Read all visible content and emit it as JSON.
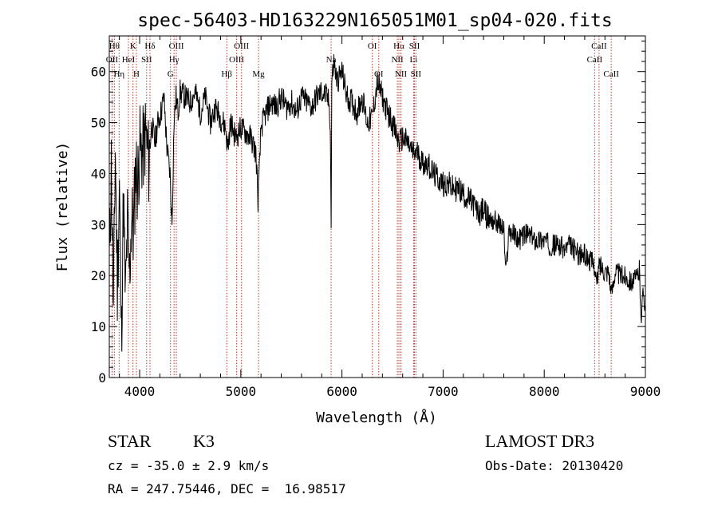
{
  "chart_data": {
    "type": "line",
    "title": "spec-56403-HD163229N165051M01_sp04-020.fits",
    "xlabel": "Wavelength (Å)",
    "ylabel": "Flux (relative)",
    "xlim": [
      3700,
      9000
    ],
    "ylim": [
      0,
      67
    ],
    "xticks": [
      4000,
      5000,
      6000,
      7000,
      8000,
      9000
    ],
    "yticks": [
      0,
      10,
      20,
      30,
      40,
      50,
      60
    ],
    "line_color": "#000000",
    "marker_color": "#c0392b",
    "series": [
      {
        "x": [
          3700,
          3720,
          3740,
          3760,
          3780,
          3800,
          3820,
          3840,
          3860,
          3880,
          3900,
          3920,
          3940,
          3960,
          3980,
          4000,
          4030,
          4060,
          4090,
          4120,
          4150,
          4180,
          4210,
          4240,
          4270,
          4300,
          4320,
          4340,
          4360,
          4380,
          4400,
          4450,
          4500,
          4550,
          4600,
          4650,
          4700,
          4750,
          4800,
          4850,
          4870,
          4900,
          4950,
          5000,
          5050,
          5100,
          5150,
          5170,
          5183,
          5200,
          5250,
          5300,
          5350,
          5400,
          5450,
          5500,
          5550,
          5600,
          5650,
          5700,
          5750,
          5800,
          5850,
          5870,
          5885,
          5893,
          5900,
          5920,
          5950,
          6000,
          6050,
          6100,
          6150,
          6200,
          6250,
          6300,
          6350,
          6400,
          6450,
          6500,
          6530,
          6563,
          6600,
          6650,
          6700,
          6750,
          6800,
          6850,
          6900,
          6950,
          7000,
          7050,
          7100,
          7150,
          7200,
          7250,
          7300,
          7350,
          7400,
          7450,
          7500,
          7550,
          7600,
          7620,
          7650,
          7700,
          7750,
          7800,
          7850,
          7900,
          7950,
          8000,
          8050,
          8100,
          8150,
          8200,
          8250,
          8300,
          8350,
          8400,
          8450,
          8498,
          8520,
          8542,
          8560,
          8600,
          8640,
          8662,
          8700,
          8750,
          8800,
          8850,
          8900,
          8940,
          8960,
          8980,
          9000
        ],
        "values": [
          22,
          42,
          12,
          45,
          18,
          38,
          8,
          35,
          15,
          30,
          20,
          32,
          28,
          42,
          38,
          45,
          44,
          48,
          42,
          50,
          46,
          50,
          52,
          55,
          45,
          40,
          30,
          50,
          55,
          52,
          56,
          55,
          54,
          56,
          52,
          55,
          50,
          53,
          51,
          49,
          45,
          50,
          47,
          49,
          48,
          47,
          44,
          35,
          40,
          49,
          52,
          54,
          53,
          55,
          53,
          54,
          52,
          55,
          54,
          53,
          55,
          56,
          55,
          54,
          50,
          30,
          58,
          62,
          58,
          60,
          55,
          54,
          52,
          55,
          50,
          51,
          58,
          55,
          52,
          50,
          48,
          46,
          47,
          46,
          44,
          44,
          42,
          42,
          40,
          39,
          38,
          38,
          37,
          37,
          36,
          35,
          34,
          32,
          33,
          31,
          31,
          30,
          29,
          20,
          29,
          28,
          27,
          28,
          28,
          27,
          27,
          27,
          26,
          26,
          26,
          25,
          26,
          25,
          24,
          24,
          23,
          22,
          18,
          22,
          22,
          21,
          21,
          16,
          21,
          20,
          20,
          19,
          19,
          21,
          12,
          17,
          14
        ]
      }
    ],
    "lines": [
      {
        "label": "Hθ",
        "x": 3750,
        "row": 1
      },
      {
        "label": "OII",
        "x": 3727,
        "row": 2
      },
      {
        "label": "Hη",
        "x": 3797,
        "row": 3
      },
      {
        "label": "K",
        "x": 3934,
        "row": 1
      },
      {
        "label": "H",
        "x": 3968,
        "row": 3
      },
      {
        "label": "HeI",
        "x": 3889,
        "row": 2
      },
      {
        "label": "SII",
        "x": 4069,
        "row": 2
      },
      {
        "label": "Hδ",
        "x": 4102,
        "row": 1
      },
      {
        "label": "OIII",
        "x": 4363,
        "row": 1
      },
      {
        "label": "Hγ",
        "x": 4340,
        "row": 2
      },
      {
        "label": "G",
        "x": 4305,
        "row": 3
      },
      {
        "label": "Hβ",
        "x": 4861,
        "row": 3
      },
      {
        "label": "OIII",
        "x": 4959,
        "row": 2
      },
      {
        "label": "OIII",
        "x": 5007,
        "row": 1
      },
      {
        "label": "Mg",
        "x": 5175,
        "row": 3
      },
      {
        "label": "Na",
        "x": 5893,
        "row": 2
      },
      {
        "label": "OI",
        "x": 6300,
        "row": 1
      },
      {
        "label": "OI",
        "x": 6364,
        "row": 3
      },
      {
        "label": "Hα",
        "x": 6563,
        "row": 1
      },
      {
        "label": "NII",
        "x": 6548,
        "row": 2
      },
      {
        "label": "NII",
        "x": 6583,
        "row": 3
      },
      {
        "label": "SII",
        "x": 6717,
        "row": 1
      },
      {
        "label": "Li",
        "x": 6708,
        "row": 2
      },
      {
        "label": "SII",
        "x": 6731,
        "row": 3
      },
      {
        "label": "CaII",
        "x": 8542,
        "row": 1
      },
      {
        "label": "CaII",
        "x": 8498,
        "row": 2
      },
      {
        "label": "CaII",
        "x": 8662,
        "row": 3
      }
    ]
  },
  "info": {
    "object_class": "STAR",
    "subclass": "K3",
    "survey": "LAMOST DR3",
    "cz": "cz = -35.0 ± 2.9 km/s",
    "obs_date": "Obs-Date: 20130420",
    "coords": "RA = 247.75446, DEC =  16.98517"
  }
}
